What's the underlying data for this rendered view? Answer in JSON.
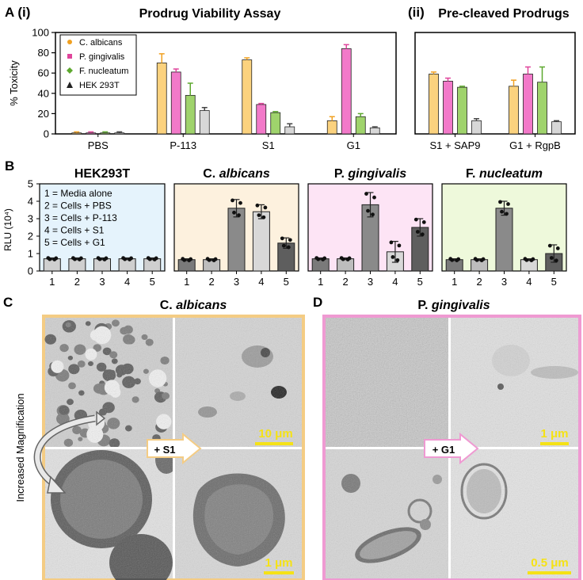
{
  "colors": {
    "c_albicans": "#fbd27e",
    "c_albicans_err": "#f0a020",
    "p_gingivalis": "#f279c9",
    "p_gingivalis_err": "#e0459c",
    "f_nucleatum": "#9fd36c",
    "f_nucleatum_err": "#5da82e",
    "hek": "#d7d7d7",
    "hek_err": "#444444",
    "panel_hek_bg": "#e5f3fc",
    "panel_ca_bg": "#fdf1de",
    "panel_pg_bg": "#fde4f5",
    "panel_fn_bg": "#eef9db",
    "border_c": "#f4cc84",
    "border_d": "#ef9ad2",
    "scale_yellow": "#f5e216"
  },
  "labels": {
    "panel_a": "A (i)",
    "panel_a_ii": "(ii)",
    "panel_b": "B",
    "panel_c": "C",
    "panel_d": "D",
    "title_ai": "Prodrug Viability Assay",
    "title_aii": "Pre-cleaved Prodrugs",
    "ylabel_a": "% Toxicity",
    "ylabel_b": "RLU (10⁴)",
    "b_titles": [
      "HEK293T",
      "C. albicans",
      "P. gingivalis",
      "F. nucleatum"
    ],
    "b_legend": [
      "1 = Media alone",
      "2 = Cells + PBS",
      "3 = Cells + P-113",
      "4 = Cells + S1",
      "5 = Cells + G1"
    ],
    "c_title": "C. albicans",
    "d_title": "P. gingivalis",
    "c_arrow": "+ S1",
    "d_arrow": "+ G1",
    "increased_mag": "Increased Magnification",
    "scale_c_top": "10 μm",
    "scale_c_bottom": "1 μm",
    "scale_d_top": "1 μm",
    "scale_d_bottom": "0.5 μm"
  },
  "chart_data": [
    {
      "type": "bar",
      "title": "Prodrug Viability Assay",
      "ylabel": "% Toxicity",
      "ylim": [
        0,
        100
      ],
      "yticks": [
        0,
        20,
        40,
        60,
        80,
        100
      ],
      "categories": [
        "PBS",
        "P-113",
        "S1",
        "G1"
      ],
      "legend_position": "top-left",
      "series": [
        {
          "name": "C. albicans",
          "marker": "circle",
          "values": [
            1,
            70,
            73,
            13
          ],
          "errors": [
            1,
            9,
            2,
            4
          ]
        },
        {
          "name": "P. gingivalis",
          "marker": "square",
          "values": [
            1,
            61,
            29,
            84
          ],
          "errors": [
            1,
            3,
            1,
            4
          ]
        },
        {
          "name": "F. nucleatum",
          "marker": "diamond",
          "values": [
            1,
            38,
            21,
            17
          ],
          "errors": [
            1,
            12,
            1,
            3
          ]
        },
        {
          "name": "HEK 293T",
          "marker": "triangle",
          "values": [
            1,
            23,
            7,
            6
          ],
          "errors": [
            1,
            3,
            3,
            1
          ]
        }
      ]
    },
    {
      "type": "bar",
      "title": "Pre-cleaved Prodrugs",
      "ylim": [
        0,
        100
      ],
      "categories": [
        "S1 + SAP9",
        "G1 + RgpB"
      ],
      "series": [
        {
          "name": "C. albicans",
          "values": [
            59,
            47
          ],
          "errors": [
            2,
            6
          ]
        },
        {
          "name": "P. gingivalis",
          "values": [
            52,
            59
          ],
          "errors": [
            3,
            7
          ]
        },
        {
          "name": "F. nucleatum",
          "values": [
            46,
            51
          ],
          "errors": [
            1,
            15
          ]
        },
        {
          "name": "HEK 293T",
          "values": [
            13,
            12
          ],
          "errors": [
            2,
            1
          ]
        }
      ]
    },
    {
      "type": "bar",
      "title": "HEK293T",
      "ylabel": "RLU (10⁴)",
      "ylim": [
        0,
        5
      ],
      "yticks": [
        0,
        1,
        2,
        3,
        4,
        5
      ],
      "categories": [
        "1",
        "2",
        "3",
        "4",
        "5"
      ],
      "values": [
        0.7,
        0.7,
        0.7,
        0.7,
        0.7
      ],
      "errors": [
        0.05,
        0.05,
        0.05,
        0.05,
        0.05
      ]
    },
    {
      "type": "bar",
      "title": "C. albicans",
      "ylim": [
        0,
        5
      ],
      "categories": [
        "1",
        "2",
        "3",
        "4",
        "5"
      ],
      "values": [
        0.65,
        0.65,
        3.6,
        3.4,
        1.6
      ],
      "errors": [
        0.05,
        0.05,
        0.5,
        0.4,
        0.3
      ]
    },
    {
      "type": "bar",
      "title": "P. gingivalis",
      "ylim": [
        0,
        5
      ],
      "categories": [
        "1",
        "2",
        "3",
        "4",
        "5"
      ],
      "values": [
        0.7,
        0.7,
        3.8,
        1.1,
        2.5
      ],
      "errors": [
        0.05,
        0.05,
        0.7,
        0.6,
        0.5
      ]
    },
    {
      "type": "bar",
      "title": "F. nucleatum",
      "ylim": [
        0,
        5
      ],
      "categories": [
        "1",
        "2",
        "3",
        "4",
        "5"
      ],
      "values": [
        0.65,
        0.65,
        3.6,
        0.65,
        1.0
      ],
      "errors": [
        0.05,
        0.05,
        0.4,
        0.05,
        0.5
      ]
    }
  ]
}
